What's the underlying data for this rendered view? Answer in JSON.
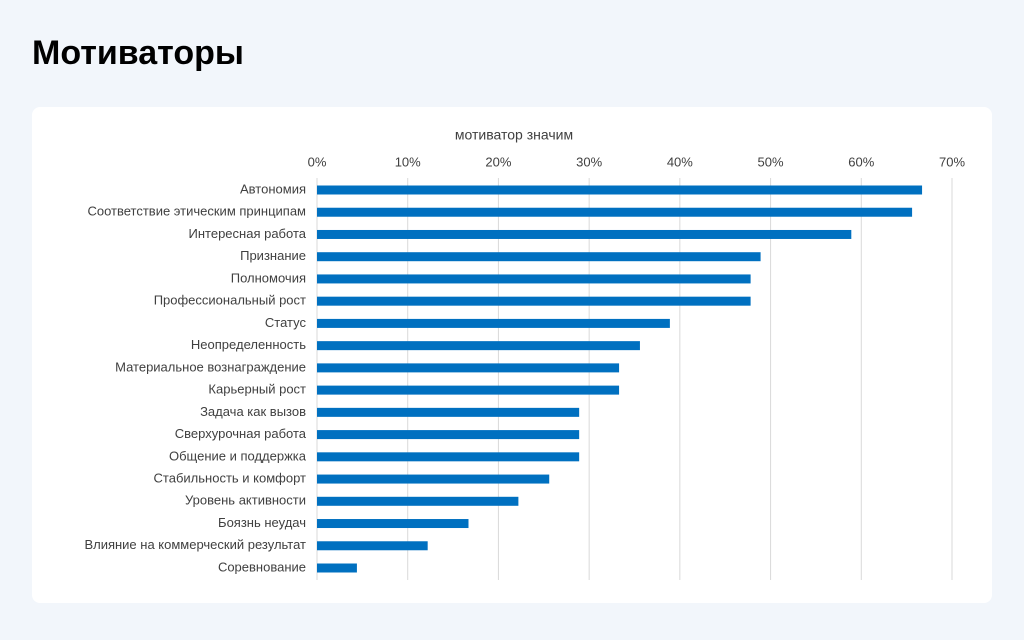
{
  "page_title": "Мотиваторы",
  "chart_data": {
    "type": "bar",
    "orientation": "horizontal",
    "title": "мотиватор значим",
    "categories": [
      "Автономия",
      "Соответствие этическим принципам",
      "Интересная работа",
      "Признание",
      "Полномочия",
      "Профессиональный рост",
      "Статус",
      "Неопределенность",
      "Материальное вознаграждение",
      "Карьерный рост",
      "Задача как вызов",
      "Сверхурочная работа",
      "Общение и поддержка",
      "Стабильность и комфорт",
      "Уровень активности",
      "Боязнь неудач",
      "Влияние на коммерческий результат",
      "Соревнование"
    ],
    "values": [
      66.7,
      65.6,
      58.9,
      48.9,
      47.8,
      47.8,
      38.9,
      35.6,
      33.3,
      33.3,
      28.9,
      28.9,
      28.9,
      25.6,
      22.2,
      16.7,
      12.2,
      4.4
    ],
    "color": "#0070c0",
    "xlim": [
      0,
      70
    ],
    "xticks": [
      {
        "value": 0,
        "label": "0%"
      },
      {
        "value": 10,
        "label": "10%"
      },
      {
        "value": 20,
        "label": "20%"
      },
      {
        "value": 30,
        "label": "30%"
      },
      {
        "value": 40,
        "label": "40%"
      },
      {
        "value": 50,
        "label": "50%"
      },
      {
        "value": 60,
        "label": "60%"
      },
      {
        "value": 70,
        "label": "70%"
      }
    ],
    "grid": true
  }
}
